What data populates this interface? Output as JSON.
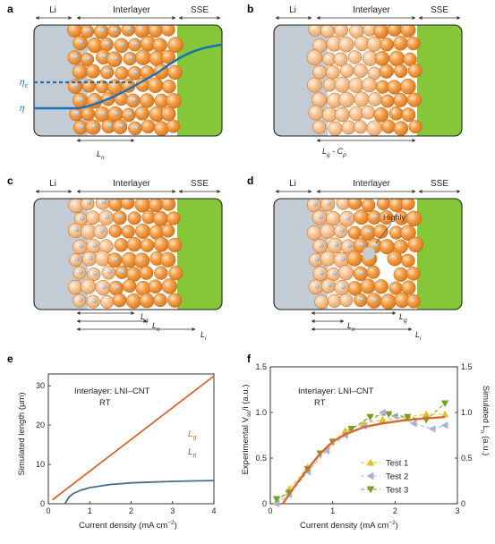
{
  "labels": {
    "regions": {
      "li": "Li",
      "interlayer": "Interlayer",
      "sse": "SSE"
    },
    "panels": [
      "a",
      "b",
      "c",
      "d",
      "e",
      "f"
    ],
    "eta_c": "η",
    "eta_c_sub": "c",
    "eta": "η",
    "ln": "L",
    "ln_sub": "n",
    "lg_cp": "L",
    "lg_cp_sub": "g",
    "lg_cp_mid": " - C",
    "lg_cp_sub2": "p",
    "lg": "L",
    "lg_sub": "g",
    "li_len": "L",
    "li_len_sub": "i",
    "highly": "Highly"
  },
  "colors": {
    "li": "#c3ccd4",
    "sse": "#86c73a",
    "particle": "#f3a24a",
    "particle_light": "#f6c79a",
    "eta_curve": "#1a6fb5",
    "lg_line": "#d9682b",
    "ln_line": "#4a6d8a",
    "test1": "#e3c02a",
    "test2": "#a9b4d4",
    "test3": "#7a9e2a",
    "sim_curve": "#d9682b",
    "left_axis": "#4f7fb8",
    "right_axis": "#d9682b"
  },
  "chart_data": [
    {
      "type": "line",
      "panel": "e",
      "annotation": "Interlayer: LNI–CNT",
      "annotation2": "RT",
      "xlabel": "Current density (mA cm",
      "xlabel_sup": "−2",
      "xlabel_end": ")",
      "ylabel": "Simulated length (μm)",
      "xlim": [
        0,
        4
      ],
      "ylim": [
        0,
        33
      ],
      "xticks": [
        "0",
        "1",
        "2",
        "3",
        "4"
      ],
      "yticks": [
        "0",
        "10",
        "20",
        "30"
      ],
      "series": [
        {
          "name": "L",
          "name_sub": "g",
          "x": [
            0.1,
            4.0
          ],
          "y": [
            1.0,
            32.5
          ]
        },
        {
          "name": "L",
          "name_sub": "n",
          "x": [
            0.4,
            0.5,
            0.6,
            0.8,
            1.0,
            1.5,
            2.0,
            2.5,
            3.0,
            3.5,
            4.0
          ],
          "y": [
            0.0,
            1.7,
            2.6,
            3.5,
            4.1,
            4.9,
            5.3,
            5.5,
            5.7,
            5.8,
            5.9
          ]
        }
      ]
    },
    {
      "type": "scatter",
      "panel": "f",
      "annotation": "Interlayer: LNI–CNT",
      "annotation2": "RT",
      "xlabel": "Current density (mA cm",
      "xlabel_sup": "−2",
      "xlabel_end": ")",
      "ylabel_left": "Experimental V",
      "ylabel_left_sub": "so",
      "ylabel_left_end": "/i (a.u.)",
      "ylabel_right": "Simulated L",
      "ylabel_right_sub": "n",
      "ylabel_right_end": " (a.u.)",
      "xlim": [
        0,
        3
      ],
      "ylim": [
        0,
        1.5
      ],
      "xticks": [
        "0",
        "1",
        "2",
        "3"
      ],
      "yticks": [
        "0",
        "0.5",
        "1.0",
        "1.5"
      ],
      "series": [
        {
          "name": "Test 1",
          "marker": "triangle-up",
          "x": [
            0.1,
            0.3,
            0.6,
            0.9,
            1.2,
            1.5,
            1.8,
            2.2,
            2.5,
            2.8
          ],
          "y": [
            0.02,
            0.16,
            0.4,
            0.6,
            0.8,
            0.88,
            0.92,
            0.95,
            0.98,
            0.98
          ]
        },
        {
          "name": "Test 2",
          "marker": "triangle-left",
          "x": [
            0.1,
            0.3,
            0.6,
            0.9,
            1.2,
            1.5,
            1.8,
            2.0,
            2.3,
            2.6,
            2.8
          ],
          "y": [
            0.0,
            0.1,
            0.35,
            0.58,
            0.75,
            0.85,
            1.0,
            0.96,
            0.88,
            0.82,
            0.86
          ]
        },
        {
          "name": "Test 3",
          "marker": "triangle-down",
          "x": [
            0.1,
            0.3,
            0.6,
            0.8,
            1.0,
            1.3,
            1.6,
            1.9,
            2.2,
            2.5,
            2.8
          ],
          "y": [
            0.05,
            0.12,
            0.38,
            0.55,
            0.68,
            0.82,
            0.95,
            0.98,
            0.95,
            0.92,
            1.1
          ]
        },
        {
          "name": "Simulated",
          "marker": "line",
          "x": [
            0.2,
            0.4,
            0.6,
            0.8,
            1.0,
            1.2,
            1.5,
            1.8,
            2.1,
            2.4,
            2.8
          ],
          "y": [
            0.0,
            0.2,
            0.38,
            0.55,
            0.68,
            0.76,
            0.84,
            0.88,
            0.91,
            0.93,
            0.95
          ]
        }
      ]
    }
  ]
}
